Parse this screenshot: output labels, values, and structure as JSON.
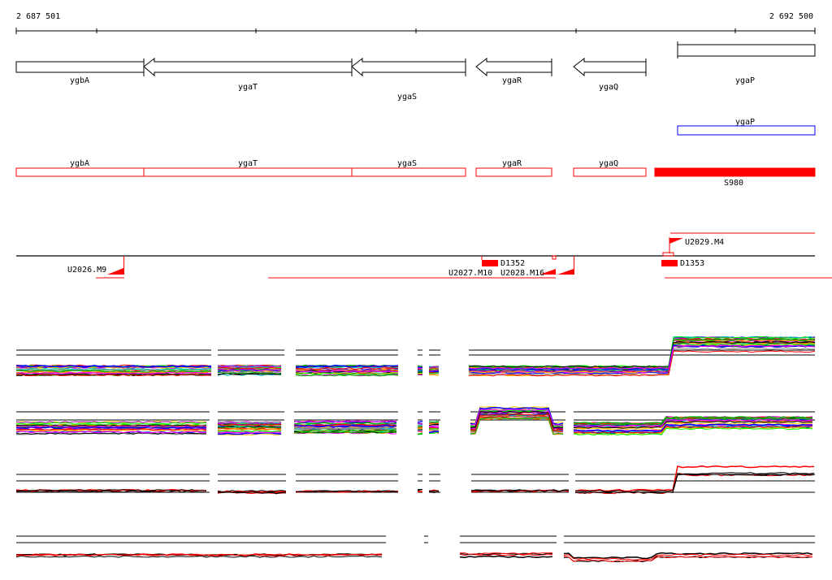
{
  "ruler": {
    "start_label": "2 687 501",
    "end_label": "2 692 500"
  },
  "genes": [
    {
      "name": "ygbA"
    },
    {
      "name": "ygaT"
    },
    {
      "name": "ygaS"
    },
    {
      "name": "ygaR"
    },
    {
      "name": "ygaQ"
    },
    {
      "name": "ygaP"
    }
  ],
  "blue_track": {
    "label": "ygaP"
  },
  "red_track": {
    "labels": [
      "ygbA",
      "ygaT",
      "ygaS",
      "ygaR",
      "ygaQ"
    ],
    "s_label": "S980"
  },
  "features": {
    "u2026": "U2026.M9",
    "d1352": "D1352",
    "u2027": "U2027.M10",
    "u2028": "U2028.M16",
    "u2029": "U2029.M4",
    "d1353": "D1353"
  },
  "colors": {
    "red": "#ff0000",
    "blue": "#0000ff",
    "black": "#000000"
  }
}
